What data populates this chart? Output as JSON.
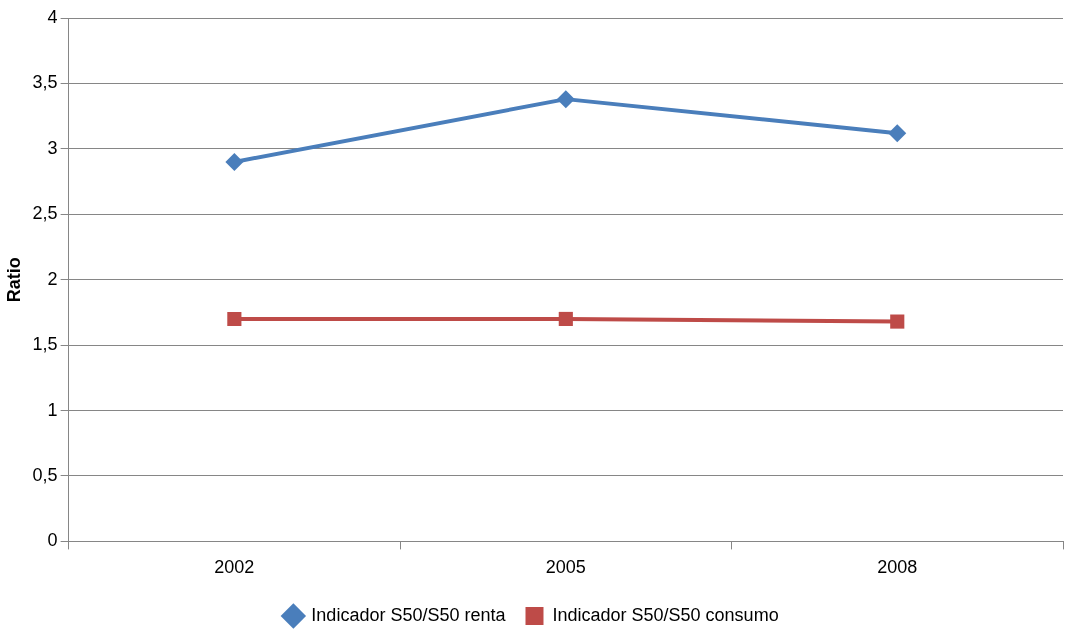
{
  "chart_data": {
    "type": "line",
    "ylabel": "Ratio",
    "categories": [
      "2002",
      "2005",
      "2008"
    ],
    "series": [
      {
        "name": "Indicador S50/S50 renta",
        "color": "#4a7ebb",
        "values": [
          2.9,
          3.38,
          3.12
        ],
        "marker": "diamond"
      },
      {
        "name": "Indicador S50/S50 consumo",
        "color": "#be4b48",
        "values": [
          1.7,
          1.7,
          1.68
        ],
        "marker": "square"
      }
    ],
    "ylim": [
      0,
      4
    ],
    "yticks": [
      0,
      {
        "value": 0.5,
        "label": "0,5"
      },
      1,
      {
        "value": 1.5,
        "label": "1,5"
      },
      2,
      {
        "value": 2.5,
        "label": "2,5"
      },
      3,
      {
        "value": 3.5,
        "label": "3,5"
      },
      4
    ],
    "grid": "y",
    "legend": "bottom",
    "line_style": "solid"
  }
}
